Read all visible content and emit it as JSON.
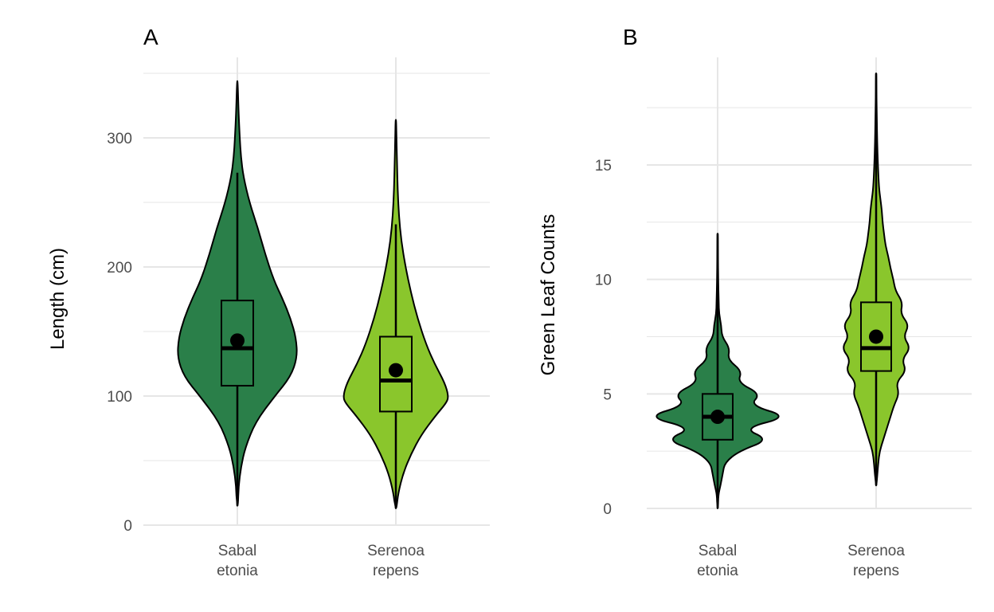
{
  "colors": {
    "sabal": "#2a7f49",
    "serenoa": "#8ac62c",
    "grid": "#e6e6e6",
    "outline": "#000000"
  },
  "chart_data": [
    {
      "panel": "A",
      "type": "violin",
      "ylabel": "Length (cm)",
      "ylim": [
        0,
        350
      ],
      "yticks": [
        0,
        100,
        200,
        300
      ],
      "categories": [
        {
          "label": [
            "Sabal",
            "etonia"
          ],
          "color_key": "sabal",
          "min": 15,
          "max": 344,
          "q1": 108,
          "median": 137,
          "q3": 174,
          "whisker_low": 15,
          "whisker_high": 273,
          "mean": 143,
          "density": [
            [
              15,
              0.01
            ],
            [
              30,
              0.02
            ],
            [
              45,
              0.06
            ],
            [
              60,
              0.13
            ],
            [
              80,
              0.3
            ],
            [
              100,
              0.62
            ],
            [
              115,
              0.88
            ],
            [
              130,
              0.99
            ],
            [
              145,
              0.97
            ],
            [
              160,
              0.88
            ],
            [
              175,
              0.75
            ],
            [
              190,
              0.6
            ],
            [
              210,
              0.46
            ],
            [
              230,
              0.34
            ],
            [
              250,
              0.2
            ],
            [
              270,
              0.1
            ],
            [
              285,
              0.06
            ],
            [
              300,
              0.04
            ],
            [
              320,
              0.02
            ],
            [
              344,
              0.005
            ]
          ]
        },
        {
          "label": [
            "Serenoa",
            "repens"
          ],
          "color_key": "serenoa",
          "min": 13,
          "max": 314,
          "q1": 88,
          "median": 112,
          "q3": 146,
          "whisker_low": 13,
          "whisker_high": 233,
          "mean": 120,
          "density": [
            [
              13,
              0.01
            ],
            [
              25,
              0.04
            ],
            [
              40,
              0.12
            ],
            [
              55,
              0.25
            ],
            [
              70,
              0.42
            ],
            [
              85,
              0.66
            ],
            [
              95,
              0.84
            ],
            [
              100,
              0.87
            ],
            [
              110,
              0.81
            ],
            [
              125,
              0.64
            ],
            [
              140,
              0.5
            ],
            [
              160,
              0.36
            ],
            [
              180,
              0.25
            ],
            [
              200,
              0.16
            ],
            [
              220,
              0.09
            ],
            [
              240,
              0.05
            ],
            [
              260,
              0.03
            ],
            [
              280,
              0.02
            ],
            [
              300,
              0.01
            ],
            [
              314,
              0.005
            ]
          ]
        }
      ]
    },
    {
      "panel": "B",
      "type": "violin",
      "ylabel": "Green Leaf Counts",
      "ylim": [
        0,
        19
      ],
      "yticks": [
        0,
        5,
        10,
        15
      ],
      "categories": [
        {
          "label": [
            "Sabal",
            "etonia"
          ],
          "color_key": "sabal",
          "min": 0,
          "max": 12,
          "q1": 3,
          "median": 4,
          "q3": 5,
          "whisker_low": 0,
          "whisker_high": 12,
          "mean": 4,
          "density": [
            [
              0,
              0.005
            ],
            [
              0.6,
              0.01
            ],
            [
              1,
              0.04
            ],
            [
              1.5,
              0.07
            ],
            [
              2,
              0.1
            ],
            [
              2.5,
              0.3
            ],
            [
              3,
              0.72
            ],
            [
              3.5,
              0.35
            ],
            [
              4,
              1.0
            ],
            [
              4.5,
              0.45
            ],
            [
              5,
              0.6
            ],
            [
              5.5,
              0.28
            ],
            [
              6,
              0.34
            ],
            [
              6.5,
              0.14
            ],
            [
              7,
              0.17
            ],
            [
              7.5,
              0.06
            ],
            [
              8,
              0.05
            ],
            [
              8.5,
              0.02
            ],
            [
              9,
              0.015
            ],
            [
              10,
              0.008
            ],
            [
              11,
              0.005
            ],
            [
              12,
              0.003
            ]
          ]
        },
        {
          "label": [
            "Serenoa",
            "repens"
          ],
          "color_key": "serenoa",
          "min": 1,
          "max": 19,
          "q1": 6,
          "median": 7,
          "q3": 9,
          "whisker_low": 1,
          "whisker_high": 19,
          "mean": 7.5,
          "density": [
            [
              1,
              0.005
            ],
            [
              2,
              0.03
            ],
            [
              2.5,
              0.05
            ],
            [
              3,
              0.1
            ],
            [
              3.5,
              0.15
            ],
            [
              4,
              0.2
            ],
            [
              4.5,
              0.25
            ],
            [
              5,
              0.32
            ],
            [
              5.5,
              0.28
            ],
            [
              6,
              0.42
            ],
            [
              6.5,
              0.36
            ],
            [
              7,
              0.48
            ],
            [
              7.5,
              0.38
            ],
            [
              8,
              0.46
            ],
            [
              8.5,
              0.34
            ],
            [
              9,
              0.37
            ],
            [
              9.5,
              0.27
            ],
            [
              10,
              0.24
            ],
            [
              10.5,
              0.2
            ],
            [
              11,
              0.17
            ],
            [
              11.5,
              0.13
            ],
            [
              12,
              0.11
            ],
            [
              12.5,
              0.09
            ],
            [
              13,
              0.08
            ],
            [
              13.5,
              0.06
            ],
            [
              14,
              0.04
            ],
            [
              15,
              0.025
            ],
            [
              16,
              0.015
            ],
            [
              17,
              0.01
            ],
            [
              18,
              0.005
            ],
            [
              19,
              0.003
            ]
          ]
        }
      ]
    }
  ]
}
